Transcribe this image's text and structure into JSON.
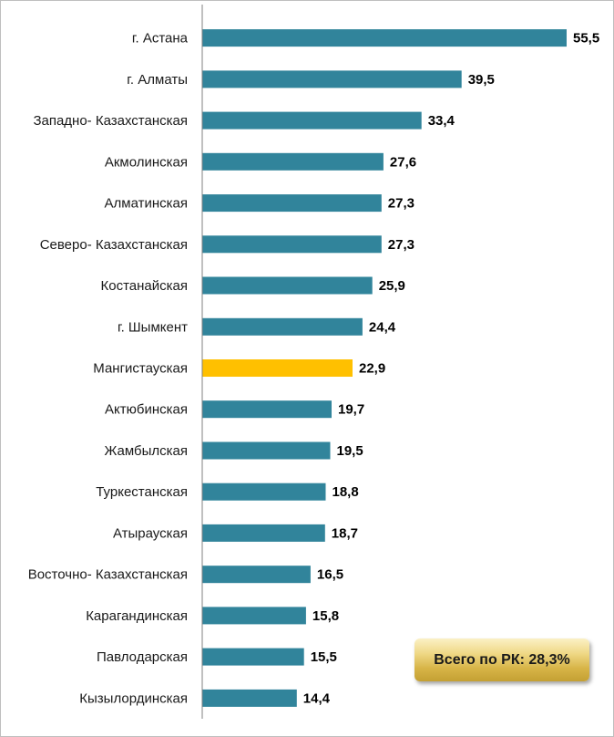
{
  "chart_data": {
    "type": "bar",
    "orientation": "horizontal",
    "categories": [
      "г. Астана",
      "г. Алматы",
      "Западно- Казахстанская",
      "Акмолинская",
      "Алматинская",
      "Северо- Казахстанская",
      "Костанайская",
      "г. Шымкент",
      "Мангистауская",
      "Актюбинская",
      "Жамбылская",
      "Туркестанская",
      "Атырауская",
      "Восточно- Казахстанская",
      "Карагандинская",
      "Павлодарская",
      "Кызылординская"
    ],
    "values": [
      55.5,
      39.5,
      33.4,
      27.6,
      27.3,
      27.3,
      25.9,
      24.4,
      22.9,
      19.7,
      19.5,
      18.8,
      18.7,
      16.5,
      15.8,
      15.5,
      14.4
    ],
    "value_labels": [
      "55,5",
      "39,5",
      "33,4",
      "27,6",
      "27,3",
      "27,3",
      "25,9",
      "24,4",
      "22,9",
      "19,7",
      "19,5",
      "18,8",
      "18,7",
      "16,5",
      "15,8",
      "15,5",
      "14,4"
    ],
    "highlight_category": "Мангистауская",
    "xlim": [
      0,
      60
    ],
    "grid": false,
    "colors": {
      "bar": "#31849b",
      "highlight": "#ffc000",
      "axis": "#808080"
    },
    "title": "",
    "xlabel": "",
    "ylabel": "",
    "annotation": "Всего по РК: 28,3%"
  }
}
